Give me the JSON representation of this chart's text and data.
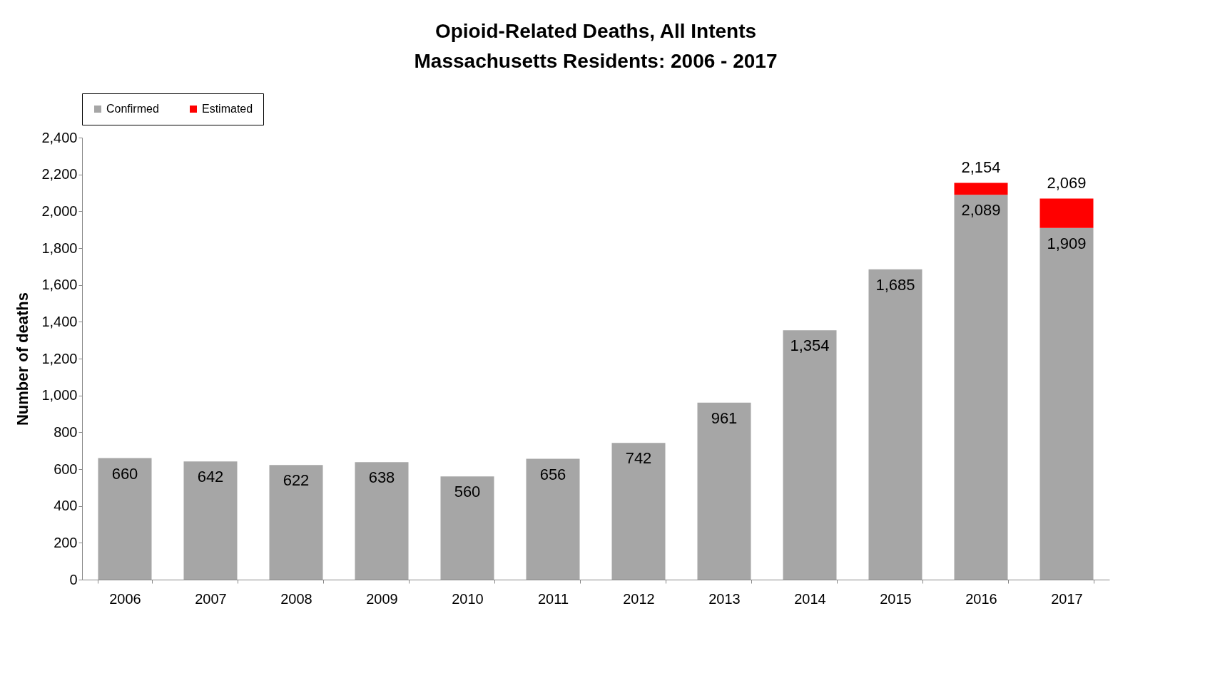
{
  "chart_data": {
    "type": "bar",
    "title": "Opioid-Related Deaths, All Intents",
    "subtitle": "Massachusetts Residents: 2006 - 2017",
    "ylabel": "Number of deaths",
    "categories": [
      "2006",
      "2007",
      "2008",
      "2009",
      "2010",
      "2011",
      "2012",
      "2013",
      "2014",
      "2015",
      "2016",
      "2017"
    ],
    "stacked": true,
    "series": [
      {
        "name": "Confirmed",
        "color": "#a6a6a6",
        "values": [
          660,
          642,
          622,
          638,
          560,
          656,
          742,
          961,
          1354,
          1685,
          2089,
          1909
        ],
        "value_labels": [
          "660",
          "642",
          "622",
          "638",
          "560",
          "656",
          "742",
          "961",
          "1,354",
          "1,685",
          "2,089",
          "1,909"
        ]
      },
      {
        "name": "Estimated",
        "color": "#ff0000",
        "values": [
          null,
          null,
          null,
          null,
          null,
          null,
          null,
          null,
          null,
          null,
          65,
          160
        ]
      }
    ],
    "totals": [
      null,
      null,
      null,
      null,
      null,
      null,
      null,
      null,
      null,
      null,
      "2,154",
      "2,069"
    ],
    "ylim": [
      0,
      2400
    ],
    "yticks": [
      0,
      200,
      400,
      600,
      800,
      {
        "value": 1000,
        "label": "1,000"
      },
      {
        "value": 1200,
        "label": "1,200"
      },
      {
        "value": 1400,
        "label": "1,400"
      },
      {
        "value": 1600,
        "label": "1,600"
      },
      {
        "value": 1800,
        "label": "1,800"
      },
      {
        "value": 2000,
        "label": "2,000"
      },
      {
        "value": 2200,
        "label": "2,200"
      },
      {
        "value": 2400,
        "label": "2,400"
      }
    ],
    "grid": false,
    "legend": "top"
  }
}
